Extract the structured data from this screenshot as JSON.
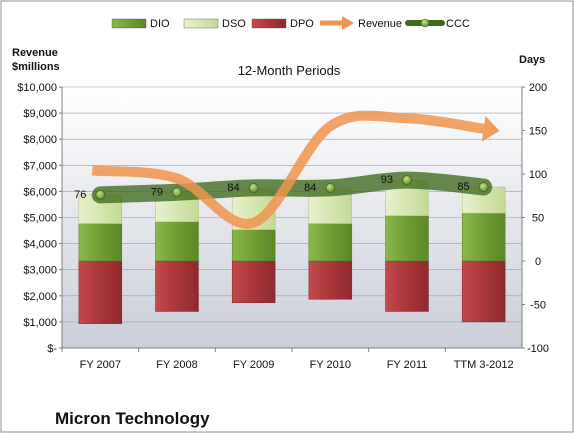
{
  "chart_data": {
    "type": "bar",
    "subtitle": "12-Month Periods",
    "company": "Micron Technology",
    "ylabel_left": [
      "Revenue",
      "$millions"
    ],
    "ylabel_right": "Days",
    "categories": [
      "FY 2007",
      "FY 2008",
      "FY 2009",
      "FY 2010",
      "FY 2011",
      "TTM 3-2012"
    ],
    "left_axis": {
      "ylim": [
        0,
        10000
      ],
      "ticks": [
        0,
        1000,
        2000,
        3000,
        4000,
        5000,
        6000,
        7000,
        8000,
        9000,
        10000
      ],
      "tick_labels": [
        "$-",
        "$1,000",
        "$2,000",
        "$3,000",
        "$4,000",
        "$5,000",
        "$6,000",
        "$7,000",
        "$8,000",
        "$9,000",
        "$10,000"
      ]
    },
    "right_axis": {
      "ylim": [
        -100,
        200
      ],
      "ticks": [
        -100,
        -50,
        0,
        50,
        100,
        150,
        200
      ],
      "tick_labels": [
        "-100",
        "-50",
        "0",
        "50",
        "100",
        "150",
        "200"
      ]
    },
    "legend_position": "top",
    "series": [
      {
        "name": "DIO",
        "type": "stacked-bar",
        "axis": "right",
        "color": "#77a33a",
        "values": [
          43,
          45,
          36,
          43,
          52,
          55
        ]
      },
      {
        "name": "DSO",
        "type": "stacked-bar",
        "axis": "right",
        "color": "#d6e6b0",
        "values": [
          33,
          34,
          48,
          41,
          41,
          30
        ]
      },
      {
        "name": "DPO",
        "type": "bar",
        "axis": "right",
        "color": "#b23b3d",
        "values": [
          -72,
          -58,
          -48,
          -44,
          -58,
          -70
        ]
      },
      {
        "name": "Revenue",
        "type": "line",
        "axis": "left",
        "color": "#f0944d",
        "values": [
          6800,
          6500,
          4800,
          8500,
          8800,
          8400
        ]
      },
      {
        "name": "CCC",
        "type": "line",
        "axis": "right",
        "color": "#4e7a28",
        "values": [
          76,
          79,
          84,
          84,
          93,
          85
        ],
        "labels": [
          "76",
          "79",
          "84",
          "84",
          "93",
          "85"
        ]
      }
    ]
  }
}
